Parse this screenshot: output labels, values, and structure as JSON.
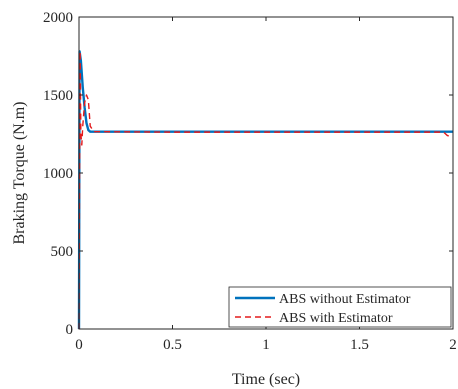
{
  "chart_data": {
    "type": "line",
    "xlabel": "Time (sec)",
    "ylabel": "Braking Torque (N.m)",
    "xlim": [
      0,
      2
    ],
    "ylim": [
      0,
      2000
    ],
    "x_ticks": [
      "0",
      "0.5",
      "1",
      "1.5",
      "2"
    ],
    "y_ticks": [
      "0",
      "500",
      "1000",
      "1500",
      "2000"
    ],
    "grid": false,
    "legend_position": "bottom-right",
    "series": [
      {
        "name": "ABS without Estimator",
        "color": "#0072BD",
        "style": "solid",
        "x": [
          0,
          0.003,
          0.01,
          0.02,
          0.03,
          0.04,
          0.05,
          0.06,
          0.1,
          0.5,
          1.0,
          1.5,
          2.0
        ],
        "y": [
          0,
          1780,
          1720,
          1550,
          1420,
          1320,
          1275,
          1265,
          1265,
          1265,
          1265,
          1265,
          1265
        ]
      },
      {
        "name": "ABS with Estimator",
        "color": "#E31A1C",
        "style": "dashed",
        "x": [
          0,
          0.003,
          0.006,
          0.01,
          0.015,
          0.02,
          0.03,
          0.04,
          0.05,
          0.06,
          0.08,
          0.5,
          1.0,
          1.5,
          1.95,
          1.97,
          2.0
        ],
        "y": [
          0,
          1000,
          1780,
          1250,
          1180,
          1300,
          1450,
          1500,
          1470,
          1300,
          1265,
          1262,
          1262,
          1262,
          1262,
          1240,
          1230
        ]
      }
    ]
  }
}
